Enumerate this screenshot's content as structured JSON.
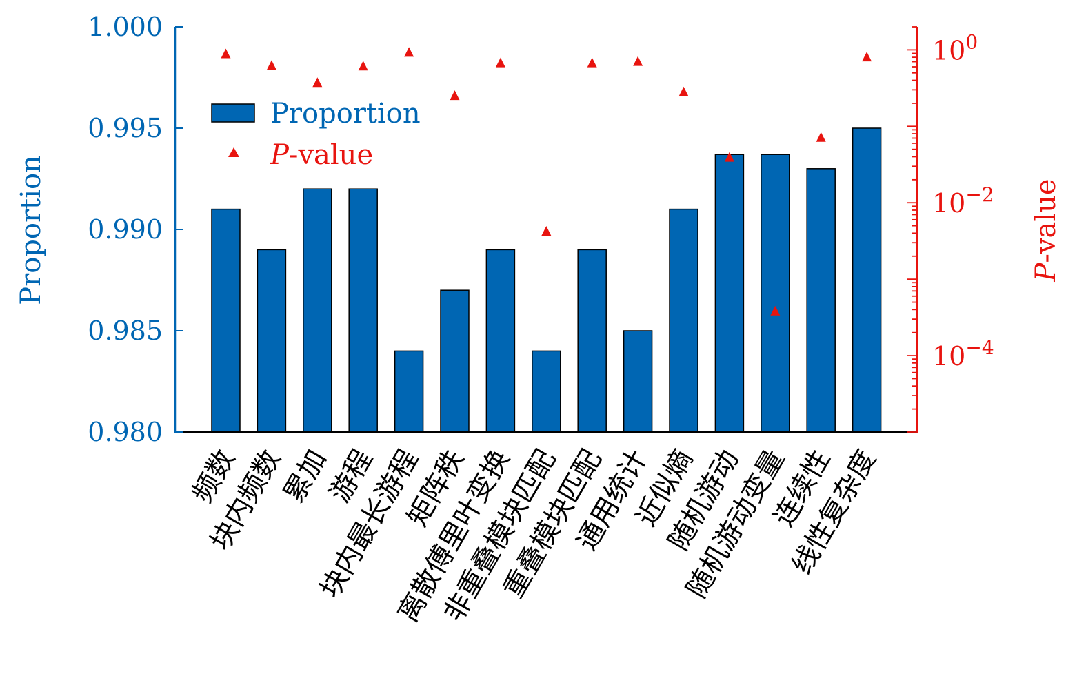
{
  "colors": {
    "proportion": "#0066b3",
    "pvalue": "#e8140f",
    "axis": "#000000"
  },
  "chart_data": {
    "type": "bar",
    "categories": [
      "频数",
      "块内频数",
      "累加",
      "游程",
      "块内最长游程",
      "矩阵秩",
      "离散傅里叶变换",
      "非重叠模块匹配",
      "重叠模块匹配",
      "通用统计",
      "近似熵",
      "随机游动",
      "随机游动变量",
      "连续性",
      "线性复杂度"
    ],
    "series": [
      {
        "name": "Proportion",
        "type": "bar",
        "axis": "left",
        "values": [
          0.991,
          0.989,
          0.992,
          0.992,
          0.984,
          0.987,
          0.989,
          0.984,
          0.989,
          0.985,
          0.991,
          0.9937,
          0.9937,
          0.993,
          0.995
        ]
      },
      {
        "name": "P-value",
        "type": "scatter",
        "marker": "triangle",
        "axis": "right",
        "values": [
          0.88,
          0.62,
          0.37,
          0.61,
          0.92,
          0.25,
          0.67,
          0.0042,
          0.67,
          0.7,
          0.28,
          0.039,
          0.00038,
          0.071,
          0.8
        ]
      }
    ],
    "ylabel": "Proportion",
    "ylim": [
      0.98,
      1.0
    ],
    "yticks": [
      "0.980",
      "0.985",
      "0.990",
      "0.995",
      "1.000"
    ],
    "y2label_italic": "P",
    "y2label_rest": "-value",
    "y2scale": "log",
    "y2lim": [
      1e-05,
      2
    ],
    "y2ticks": [
      {
        "base": "10",
        "exp": "0",
        "value": 1
      },
      {
        "base": "10",
        "exp": "−2",
        "value": 0.01
      },
      {
        "base": "10",
        "exp": "−4",
        "value": 0.0001
      }
    ],
    "legend": {
      "position": "top-left",
      "items": [
        {
          "label_italic": "",
          "label_rest": "Proportion"
        },
        {
          "label_italic": "P",
          "label_rest": "-value"
        }
      ]
    }
  }
}
